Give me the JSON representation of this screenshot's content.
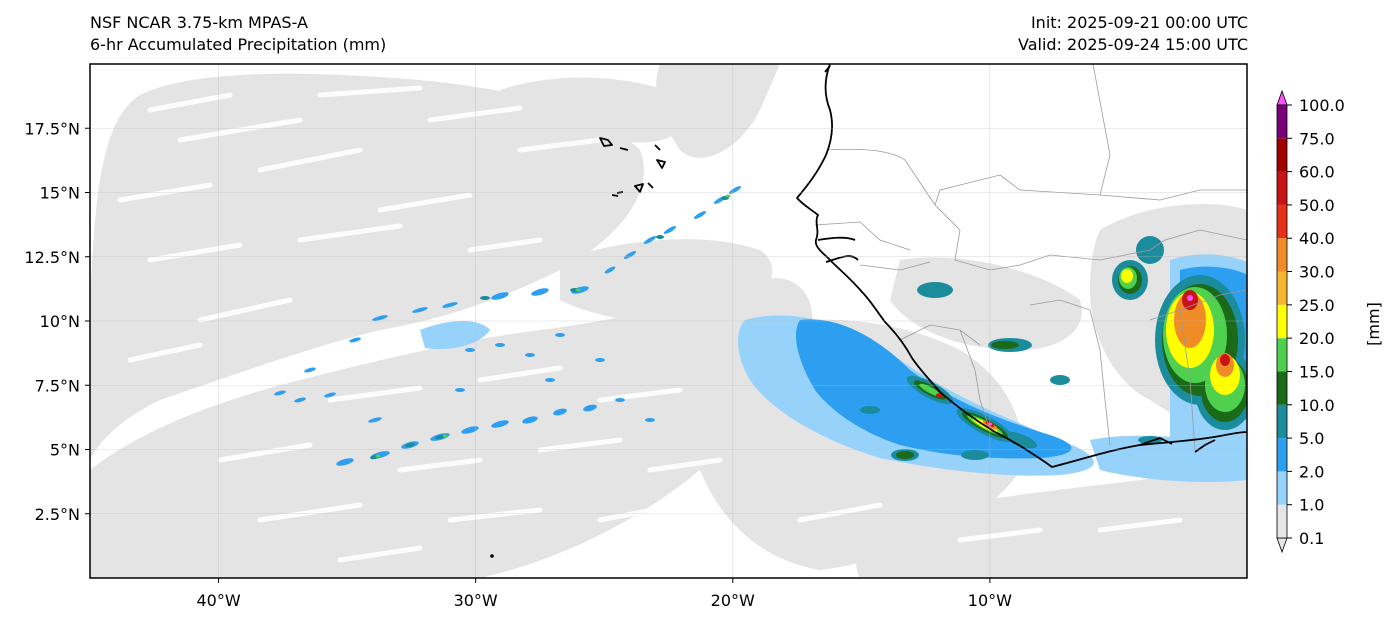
{
  "header": {
    "model": "NSF NCAR 3.75-km MPAS-A",
    "field": "6-hr Accumulated Precipitation (mm)",
    "init": "Init: 2025-09-21 00:00 UTC",
    "valid": "Valid: 2025-09-24 15:00 UTC"
  },
  "map": {
    "extent": {
      "lon_min": -45,
      "lon_max": 0,
      "lat_min": 0,
      "lat_max": 20
    },
    "lat_ticks": [
      {
        "value": 17.5,
        "label": "17.5°N"
      },
      {
        "value": 15,
        "label": "15°N"
      },
      {
        "value": 12.5,
        "label": "12.5°N"
      },
      {
        "value": 10,
        "label": "10°N"
      },
      {
        "value": 7.5,
        "label": "7.5°N"
      },
      {
        "value": 5,
        "label": "5°N"
      },
      {
        "value": 2.5,
        "label": "2.5°N"
      }
    ],
    "lon_ticks": [
      {
        "value": -40,
        "label": "40°W"
      },
      {
        "value": -30,
        "label": "30°W"
      },
      {
        "value": -20,
        "label": "20°W"
      },
      {
        "value": -10,
        "label": "10°W"
      }
    ],
    "gridlines": true
  },
  "colorbar": {
    "unit_label": "[mm]",
    "levels": [
      "0.1",
      "1.0",
      "2.0",
      "5.0",
      "10.0",
      "15.0",
      "20.0",
      "25.0",
      "30.0",
      "40.0",
      "50.0",
      "60.0",
      "75.0",
      "100.0"
    ],
    "colors": [
      "#e6e6e6",
      "#96d2fa",
      "#2d9ff0",
      "#1b8c9c",
      "#1a6a1a",
      "#4fd04f",
      "#ffff00",
      "#f5b52e",
      "#f08c28",
      "#e63219",
      "#c81414",
      "#a00000",
      "#780078",
      "#ff50ff"
    ]
  }
}
